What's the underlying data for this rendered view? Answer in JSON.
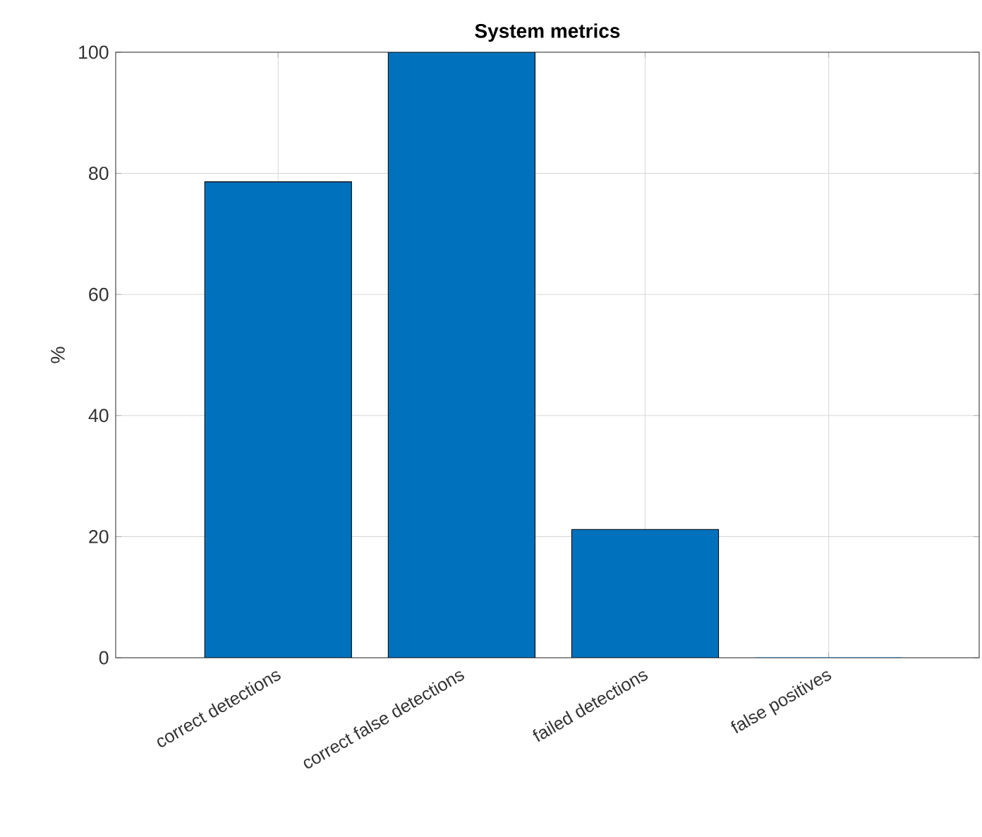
{
  "chart_data": {
    "type": "bar",
    "title": "System metrics",
    "ylabel": "%",
    "categories": [
      "correct detections",
      "correct false detections",
      "failed detections",
      "false positives"
    ],
    "values": [
      78.6,
      100,
      21.2,
      0
    ],
    "color": "#0072bd",
    "ylim": [
      0,
      100
    ],
    "yticks": [
      0,
      20,
      40,
      60,
      80,
      100
    ],
    "grid": true
  }
}
